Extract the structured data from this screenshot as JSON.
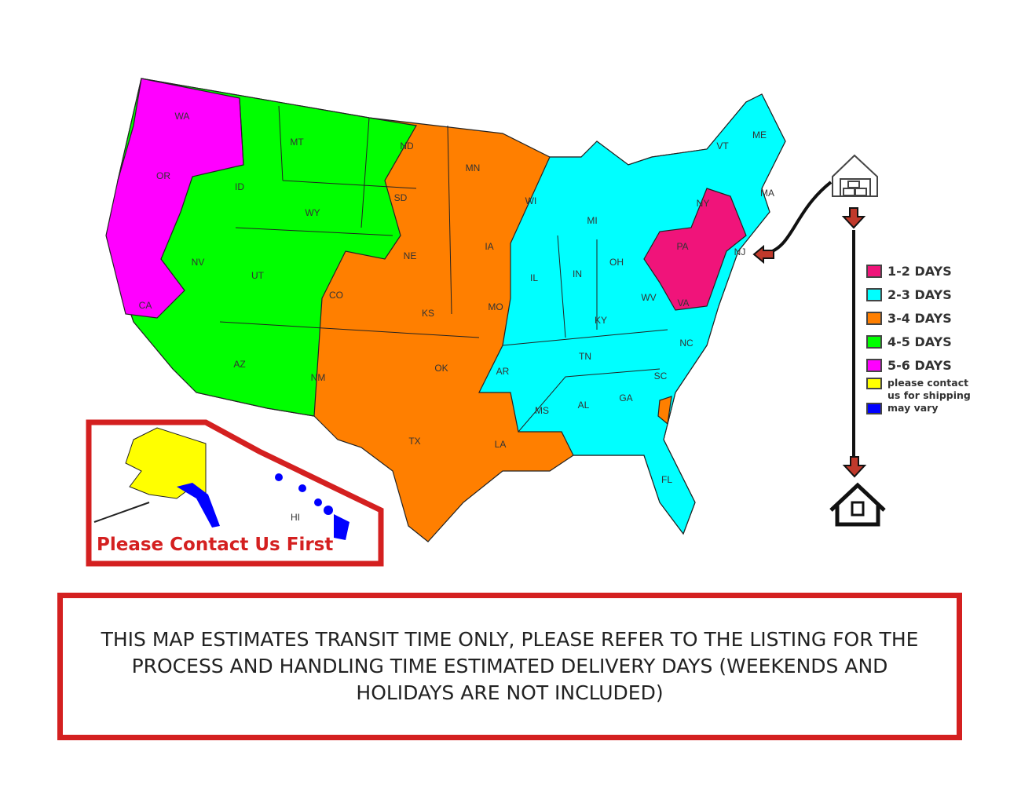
{
  "colors": {
    "1-2": "#f0147a",
    "2-3": "#00ffff",
    "3-4": "#ff7f00",
    "4-5": "#00ff00",
    "5-6": "#ff00ff",
    "contact": "#ffff00",
    "vary": "#0000ff",
    "border": "#d42020"
  },
  "states": [
    "WA",
    "OR",
    "CA",
    "ID",
    "NV",
    "MT",
    "WY",
    "UT",
    "AZ",
    "CO",
    "NM",
    "ND",
    "SD",
    "NE",
    "KS",
    "OK",
    "TX",
    "MN",
    "IA",
    "MO",
    "AR",
    "LA",
    "WI",
    "IL",
    "MI",
    "IN",
    "OH",
    "KY",
    "TN",
    "MS",
    "AL",
    "GA",
    "FL",
    "SC",
    "NC",
    "WV",
    "VA",
    "PA",
    "NY",
    "VT",
    "ME",
    "MA",
    "NJ",
    "AK",
    "HI"
  ],
  "legend": [
    {
      "label": "1-2 DAYS",
      "color": "#f0147a"
    },
    {
      "label": "2-3 DAYS",
      "color": "#00ffff"
    },
    {
      "label": "3-4 DAYS",
      "color": "#ff7f00"
    },
    {
      "label": "4-5 DAYS",
      "color": "#00ff00"
    },
    {
      "label": "5-6 DAYS",
      "color": "#ff00ff"
    },
    {
      "label": "please contact",
      "color": "#ffff00"
    },
    {
      "label": "us for shipping",
      "color": ""
    },
    {
      "label": "may vary",
      "color": "#0000ff"
    }
  ],
  "icons": {
    "origin": "warehouse-icon",
    "destination": "house-icon"
  },
  "inset_label": "Please Contact Us First",
  "note": "THIS MAP ESTIMATES TRANSIT TIME ONLY, PLEASE REFER TO THE LISTING FOR THE PROCESS AND HANDLING TIME ESTIMATED DELIVERY DAYS (WEEKENDS AND HOLIDAYS ARE NOT INCLUDED)"
}
